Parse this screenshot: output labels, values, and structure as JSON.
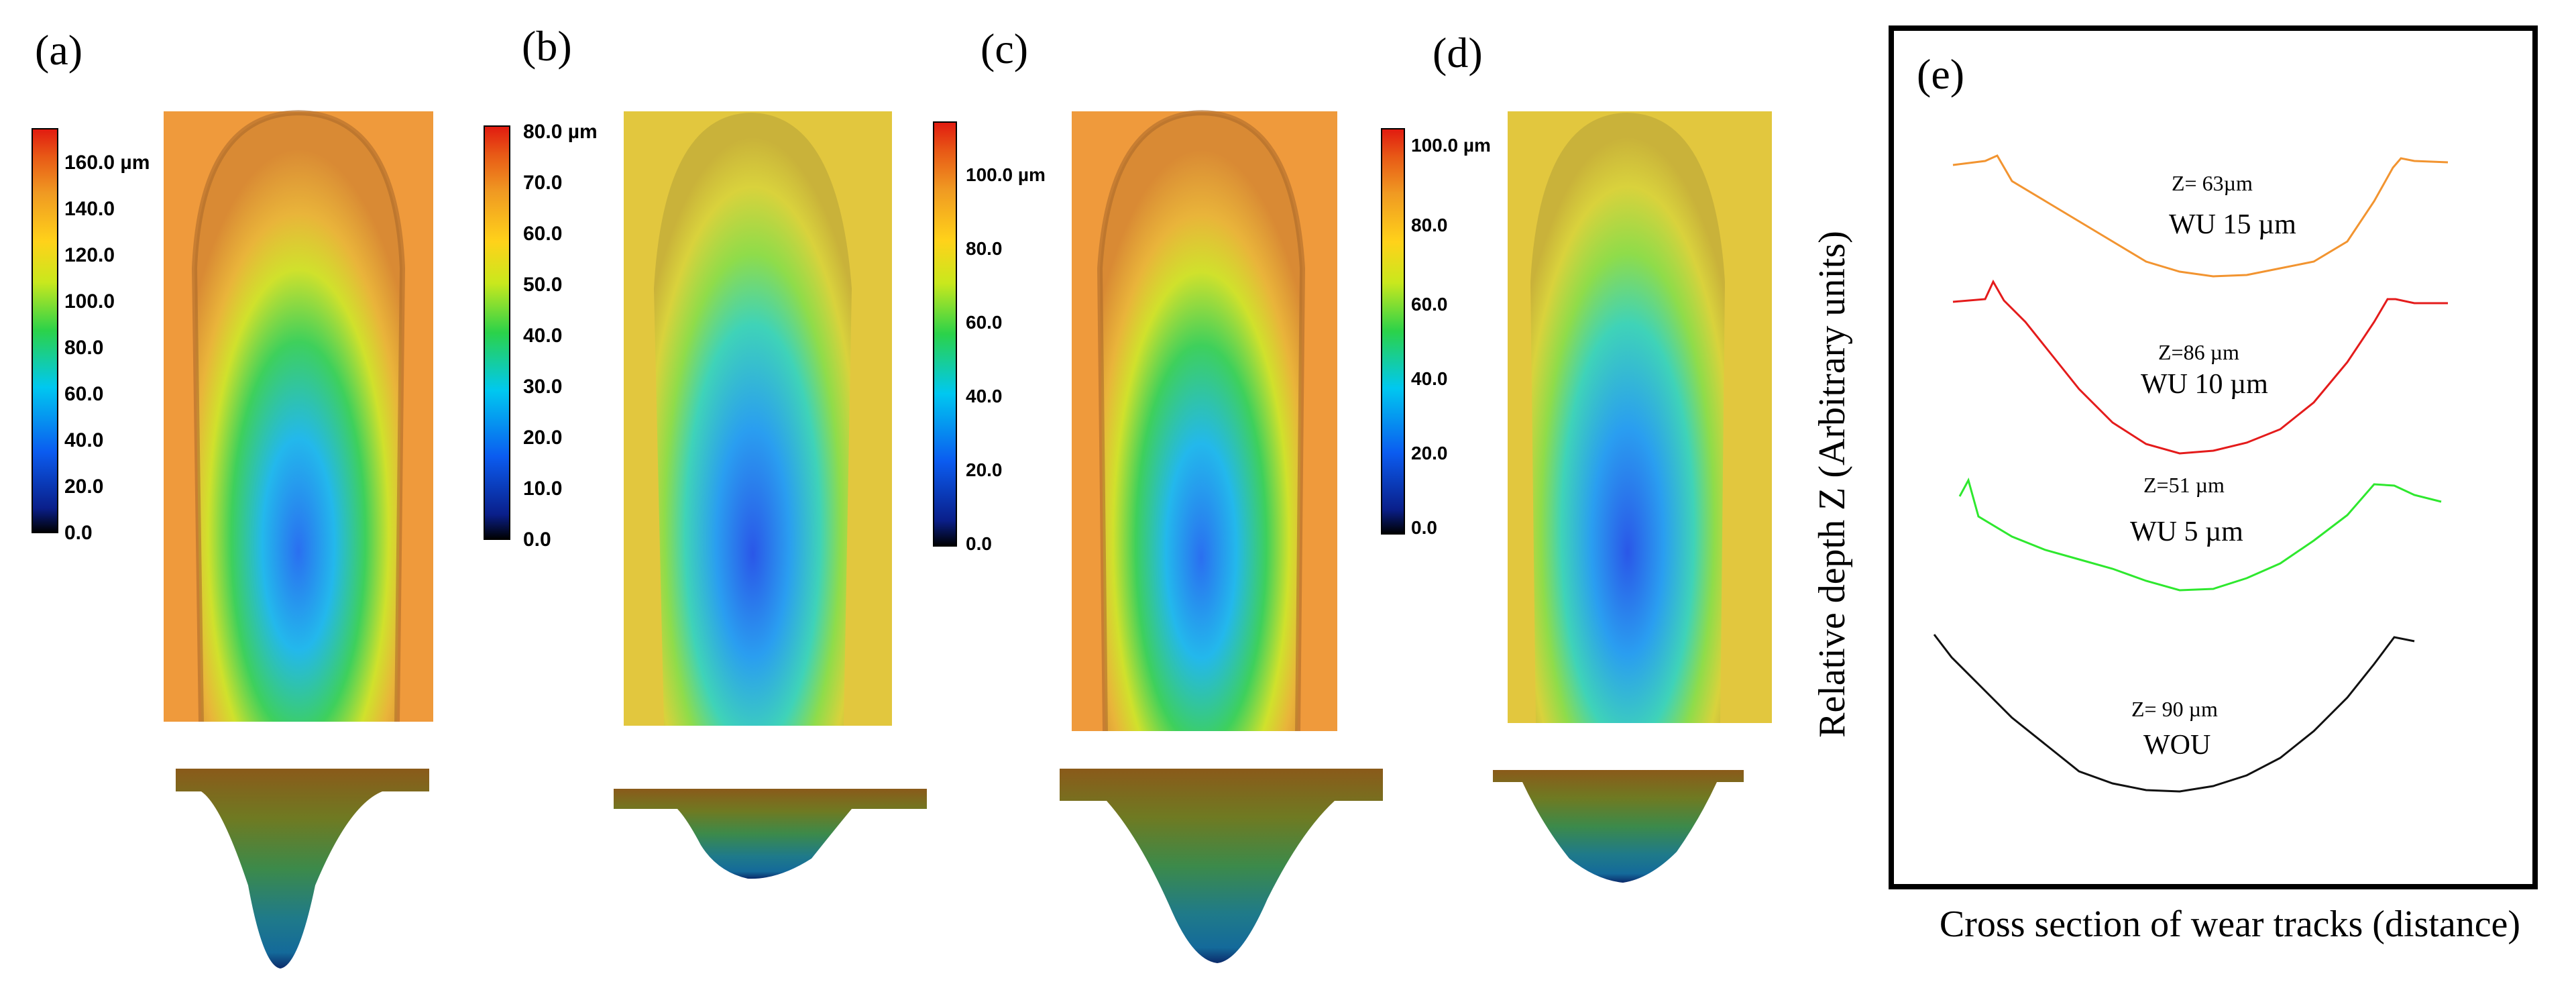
{
  "colors": {
    "scale": [
      "#000000",
      "#0a1f8a",
      "#0b5cf0",
      "#00c8f0",
      "#2bd24a",
      "#c9e81d",
      "#ffd21a",
      "#f09a22",
      "#e85a16",
      "#e11a10"
    ],
    "background_orange": "#f09a3a",
    "background_yellow": "#e2c73e",
    "profile_orange": "#f29430",
    "profile_red": "#e41b1b",
    "profile_green": "#2ee82e",
    "profile_black": "#111111"
  },
  "panels": [
    {
      "id": "a",
      "label": "(a)",
      "colorbar_ticks": [
        "160.0 µm",
        "140.0",
        "120.0",
        "100.0",
        "80.0",
        "60.0",
        "40.0",
        "20.0",
        "0.0"
      ],
      "background": "orange",
      "depth_fraction": 0.75
    },
    {
      "id": "b",
      "label": "(b)",
      "colorbar_ticks": [
        "80.0 µm",
        "70.0",
        "60.0",
        "50.0",
        "40.0",
        "30.0",
        "20.0",
        "10.0",
        "0.0"
      ],
      "background": "yellow",
      "depth_fraction": 0.42
    },
    {
      "id": "c",
      "label": "(c)",
      "colorbar_ticks": [
        "100.0 µm",
        "80.0",
        "60.0",
        "40.0",
        "20.0",
        "0.0"
      ],
      "background": "orange",
      "depth_fraction": 0.85
    },
    {
      "id": "d",
      "label": "(d)",
      "colorbar_ticks": [
        "100.0 µm",
        "80.0",
        "60.0",
        "40.0",
        "20.0",
        "0.0"
      ],
      "background": "yellow",
      "depth_fraction": 0.5
    }
  ],
  "panel_e": {
    "label": "(e)",
    "ylabel": "Relative depth Z (Arbitrary units)",
    "xlabel": "Cross section of wear tracks (distance)",
    "profiles": [
      {
        "depth_label": "Z= 63µm",
        "name_label": "WU 15 µm",
        "color": "orange"
      },
      {
        "depth_label": "Z=86 µm",
        "name_label": "WU 10 µm",
        "color": "red"
      },
      {
        "depth_label": "Z=51 µm",
        "name_label": "WU 5 µm",
        "color": "green"
      },
      {
        "depth_label": "Z= 90 µm",
        "name_label": "WOU",
        "color": "black"
      }
    ]
  }
}
